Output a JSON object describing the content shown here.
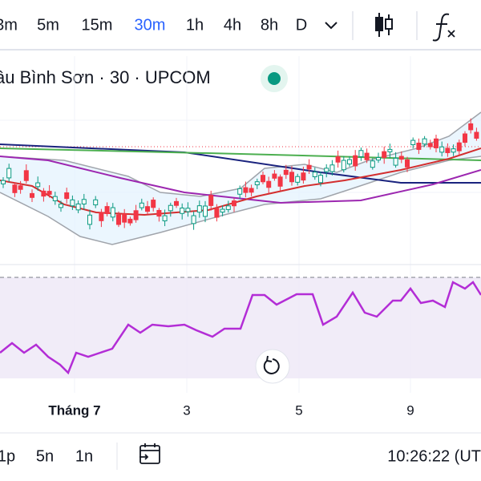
{
  "toolbar": {
    "intervals": [
      "3m",
      "5m",
      "15m",
      "30m",
      "1h",
      "4h",
      "8h",
      "D"
    ],
    "active": "30m"
  },
  "title": "âu Bình Sơn · 30 · UPCOM",
  "time_axis": [
    "Tháng 7",
    "3",
    "5",
    "9"
  ],
  "bottom_bar": {
    "ranges": [
      "1p",
      "5n",
      "1n"
    ],
    "clock": "10:26:22 (UT"
  }
}
